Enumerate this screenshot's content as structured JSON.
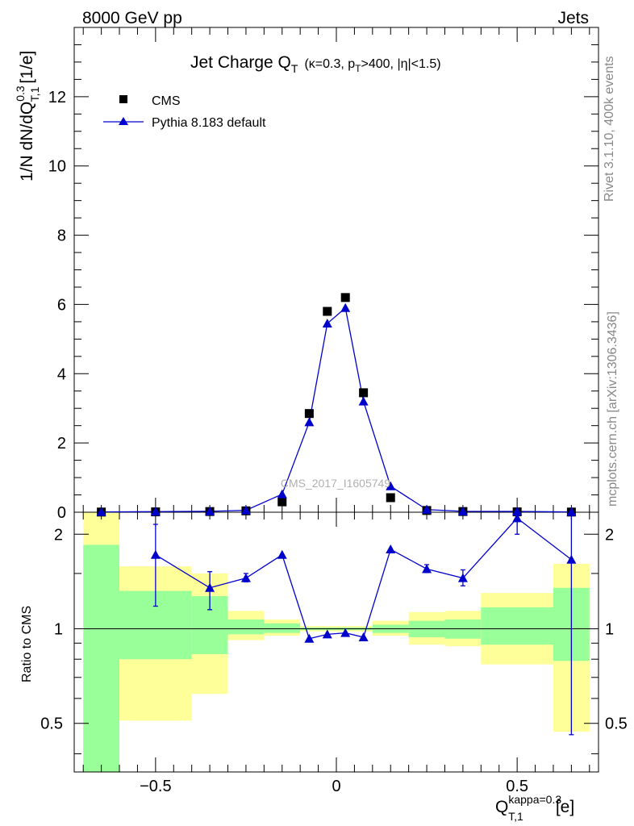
{
  "header": {
    "left": "8000 GeV pp",
    "right": "Jets"
  },
  "side_text": {
    "generator": "Rivet 3.1.10,  400k events",
    "source": "mcplots.cern.ch [arXiv:1306.3436]"
  },
  "watermark": "CMS_2017_I1605749",
  "chart_data": [
    {
      "type": "scatter",
      "title_main": "Jet Charge Q",
      "title_sub": "T",
      "title_cond": "(κ=0.3, p",
      "title_cond_sub": "T",
      "title_cond_rest": ">400, |η|<1.5)",
      "ylabel_main": "1/N dN/dQ",
      "ylabel_sup": "0.3",
      "ylabel_sub": "T,1",
      "ylabel_unit": "[1/e]",
      "xlim": [
        -0.725,
        0.725
      ],
      "ylim": [
        0,
        14
      ],
      "yticks": [
        0,
        2,
        4,
        6,
        8,
        10,
        12
      ],
      "ytick_labels": [
        "0",
        "2",
        "4",
        "6",
        "8",
        "10",
        "12"
      ],
      "legend": [
        {
          "name": "CMS",
          "marker": "square",
          "color": "#000000"
        },
        {
          "name": "Pythia 8.183 default",
          "marker": "triangle",
          "color": "#0000cc"
        }
      ],
      "series": [
        {
          "name": "CMS",
          "x": [
            -0.65,
            -0.5,
            -0.35,
            -0.25,
            -0.15,
            -0.075,
            -0.025,
            0.025,
            0.075,
            0.15,
            0.25,
            0.35,
            0.5,
            0.65
          ],
          "y": [
            0.005,
            0.01,
            0.02,
            0.04,
            0.3,
            2.85,
            5.8,
            6.2,
            3.45,
            0.42,
            0.05,
            0.02,
            0.01,
            0.005
          ]
        },
        {
          "name": "Pythia 8.183 default",
          "x": [
            -0.65,
            -0.5,
            -0.35,
            -0.25,
            -0.15,
            -0.075,
            -0.025,
            0.025,
            0.075,
            0.15,
            0.25,
            0.35,
            0.5,
            0.65
          ],
          "y": [
            0.008,
            0.017,
            0.027,
            0.056,
            0.52,
            2.6,
            5.45,
            5.9,
            3.2,
            0.75,
            0.075,
            0.027,
            0.022,
            0.008
          ]
        }
      ]
    },
    {
      "type": "line",
      "ylabel": "Ratio to CMS",
      "xlabel_main": "Q",
      "xlabel_sup": "kappa=0.3",
      "xlabel_sub": "T,1",
      "xlabel_unit": "[e]",
      "xlim": [
        -0.725,
        0.725
      ],
      "ylim": [
        0.35,
        2.35
      ],
      "xticks": [
        -0.5,
        0,
        0.5
      ],
      "xtick_labels": [
        "−0.5",
        "0",
        "0.5"
      ],
      "yticks": [
        0.5,
        1,
        2
      ],
      "ytick_labels": [
        "0.5",
        "1",
        "2"
      ],
      "reference_line": 1,
      "bands": [
        {
          "x0": -0.7,
          "x1": -0.6,
          "yellow": [
            0.35,
            2.35
          ],
          "green": [
            0.35,
            1.85
          ]
        },
        {
          "x0": -0.6,
          "x1": -0.4,
          "yellow": [
            0.51,
            1.58
          ],
          "green": [
            0.8,
            1.32
          ]
        },
        {
          "x0": -0.4,
          "x1": -0.3,
          "yellow": [
            0.62,
            1.5
          ],
          "green": [
            0.83,
            1.27
          ]
        },
        {
          "x0": -0.3,
          "x1": -0.2,
          "yellow": [
            0.92,
            1.14
          ],
          "green": [
            0.96,
            1.07
          ]
        },
        {
          "x0": -0.2,
          "x1": -0.1,
          "yellow": [
            0.95,
            1.07
          ],
          "green": [
            0.97,
            1.04
          ]
        },
        {
          "x0": -0.1,
          "x1": 0.0,
          "yellow": [
            0.98,
            1.02
          ],
          "green": [
            0.99,
            1.01
          ]
        },
        {
          "x0": 0.0,
          "x1": 0.1,
          "yellow": [
            0.98,
            1.02
          ],
          "green": [
            0.99,
            1.01
          ]
        },
        {
          "x0": 0.1,
          "x1": 0.2,
          "yellow": [
            0.95,
            1.06
          ],
          "green": [
            0.97,
            1.03
          ]
        },
        {
          "x0": 0.2,
          "x1": 0.3,
          "yellow": [
            0.89,
            1.13
          ],
          "green": [
            0.94,
            1.06
          ]
        },
        {
          "x0": 0.3,
          "x1": 0.4,
          "yellow": [
            0.88,
            1.14
          ],
          "green": [
            0.93,
            1.07
          ]
        },
        {
          "x0": 0.4,
          "x1": 0.6,
          "yellow": [
            0.77,
            1.3
          ],
          "green": [
            0.89,
            1.17
          ]
        },
        {
          "x0": 0.6,
          "x1": 0.7,
          "yellow": [
            0.47,
            1.61
          ],
          "green": [
            0.79,
            1.35
          ]
        }
      ],
      "series": [
        {
          "name": "Pythia 8.183 default",
          "x": [
            -0.5,
            -0.35,
            -0.25,
            -0.15,
            -0.075,
            -0.025,
            0.025,
            0.075,
            0.15,
            0.25,
            0.35,
            0.5,
            0.65
          ],
          "y": [
            1.72,
            1.35,
            1.45,
            1.72,
            0.93,
            0.96,
            0.97,
            0.94,
            1.79,
            1.55,
            1.45,
            2.25,
            1.66
          ],
          "err_low": [
            1.18,
            1.15,
            1.41,
            1.72,
            0.93,
            0.96,
            0.97,
            0.94,
            1.79,
            1.51,
            1.37,
            2.0,
            0.46
          ],
          "err_high": [
            2.15,
            1.52,
            1.5,
            1.72,
            0.93,
            0.96,
            0.97,
            0.94,
            1.79,
            1.6,
            1.54,
            2.3,
            2.35
          ]
        }
      ]
    }
  ]
}
